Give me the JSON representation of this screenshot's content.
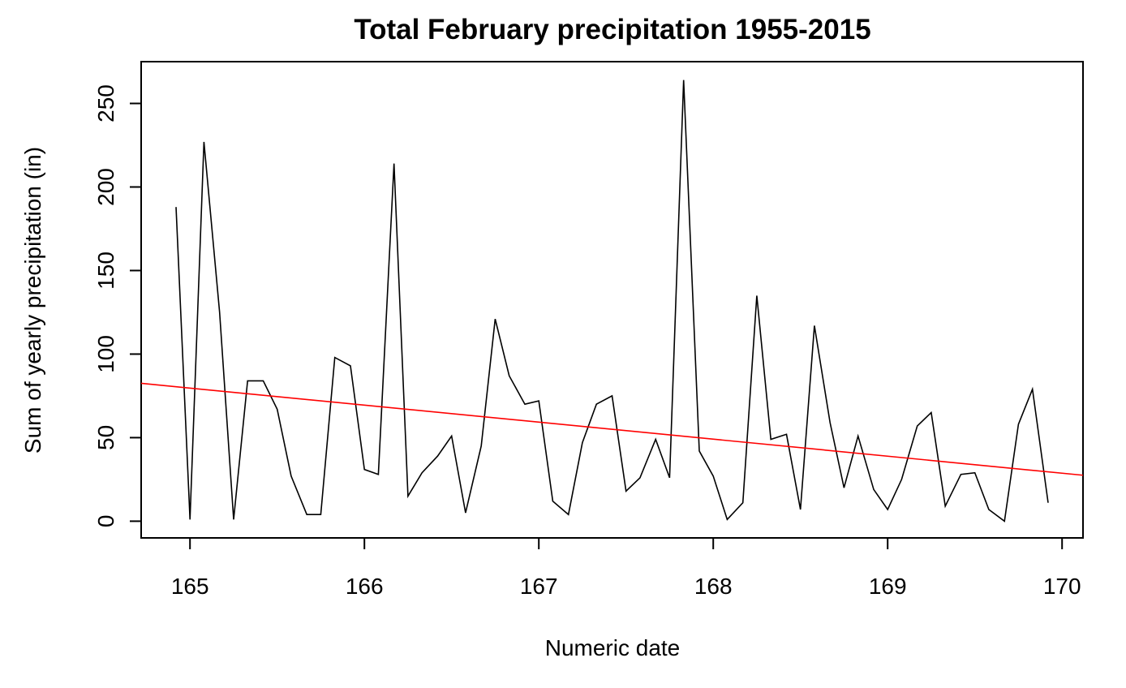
{
  "chart_data": {
    "type": "line",
    "title": "Total February precipitation 1955-2015",
    "xlabel": "Numeric date",
    "ylabel": "Sum of yearly precipitation (in)",
    "xlim": [
      164.72,
      170.12
    ],
    "ylim": [
      -10,
      275
    ],
    "x_ticks": [
      165,
      166,
      167,
      168,
      169,
      170
    ],
    "x_tick_labels": [
      "165",
      "166",
      "167",
      "168",
      "169",
      "170"
    ],
    "y_ticks": [
      0,
      50,
      100,
      150,
      200,
      250
    ],
    "y_tick_labels": [
      "0",
      "50",
      "100",
      "150",
      "200",
      "250"
    ],
    "grid": false,
    "colors": {
      "series": "#000000",
      "trend": "#ff0000"
    },
    "series": [
      {
        "type": "line",
        "x": [
          164.92,
          165.0,
          165.08,
          165.17,
          165.25,
          165.33,
          165.42,
          165.5,
          165.58,
          165.67,
          165.75,
          165.83,
          165.92,
          166.0,
          166.08,
          166.17,
          166.25,
          166.33,
          166.42,
          166.5,
          166.58,
          166.67,
          166.75,
          166.83,
          166.92,
          167.0,
          167.08,
          167.17,
          167.25,
          167.33,
          167.42,
          167.5,
          167.58,
          167.67,
          167.75,
          167.83,
          167.92,
          168.0,
          168.08,
          168.17,
          168.25,
          168.33,
          168.42,
          168.5,
          168.58,
          168.67,
          168.75,
          168.83,
          168.92,
          169.0,
          169.08,
          169.17,
          169.25,
          169.33,
          169.42,
          169.5,
          169.58,
          169.67,
          169.75,
          169.83,
          169.92
        ],
        "y": [
          188,
          1,
          227,
          125,
          1,
          84,
          84,
          67,
          27,
          4,
          4,
          98,
          93,
          31,
          28,
          214,
          15,
          29,
          39,
          51,
          5,
          45,
          121,
          87,
          70,
          72,
          12,
          4,
          47,
          70,
          75,
          18,
          26,
          49,
          26,
          264,
          42,
          27,
          1,
          11,
          135,
          49,
          52,
          7,
          117,
          59,
          20,
          51,
          19,
          7,
          25,
          57,
          65,
          9,
          28,
          29,
          7,
          0,
          58,
          79,
          11
        ]
      },
      {
        "type": "trend",
        "x": [
          164.72,
          170.12
        ],
        "y": [
          82.5,
          27.5
        ]
      }
    ]
  }
}
